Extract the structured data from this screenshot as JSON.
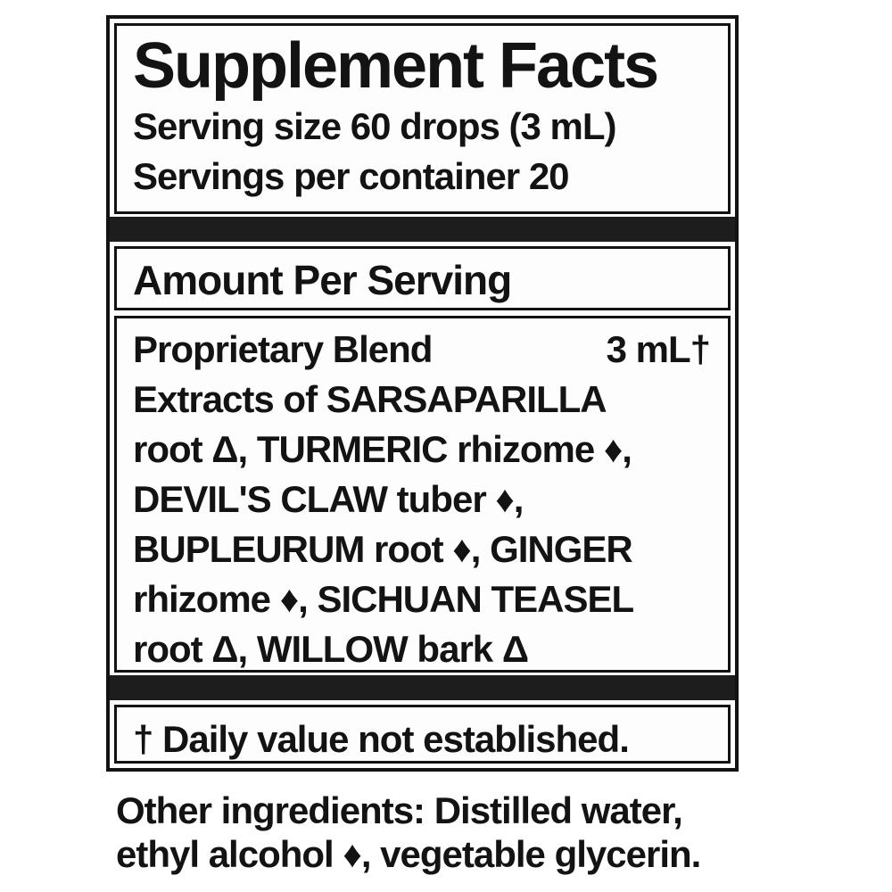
{
  "label": {
    "title": "Supplement Facts",
    "serving_size": "Serving size 60 drops (3 mL)",
    "servings_per_container": "Servings per container 20",
    "amount_per_serving_header": "Amount Per Serving",
    "blend": {
      "name": "Proprietary Blend",
      "amount": "3 mL†"
    },
    "ingredient_lines": [
      "Extracts of SARSAPARILLA",
      "root Δ, TURMERIC rhizome ♦,",
      "DEVIL'S CLAW tuber ♦,",
      "BUPLEURUM root ♦, GINGER",
      "rhizome ♦, SICHUAN TEASEL",
      "root Δ, WILLOW bark Δ"
    ],
    "footnote": "† Daily value not established.",
    "other_ingredients_line1": "Other ingredients: Distilled water,",
    "other_ingredients_line2": "ethyl alcohol ♦, vegetable glycerin.",
    "symbols": {
      "triangle_marker": "Δ",
      "diamond_marker": "♦",
      "dagger_marker": "†"
    },
    "colors": {
      "text": "#131313",
      "separator_bar": "#1d1d1d",
      "background": "#ffffff"
    }
  }
}
